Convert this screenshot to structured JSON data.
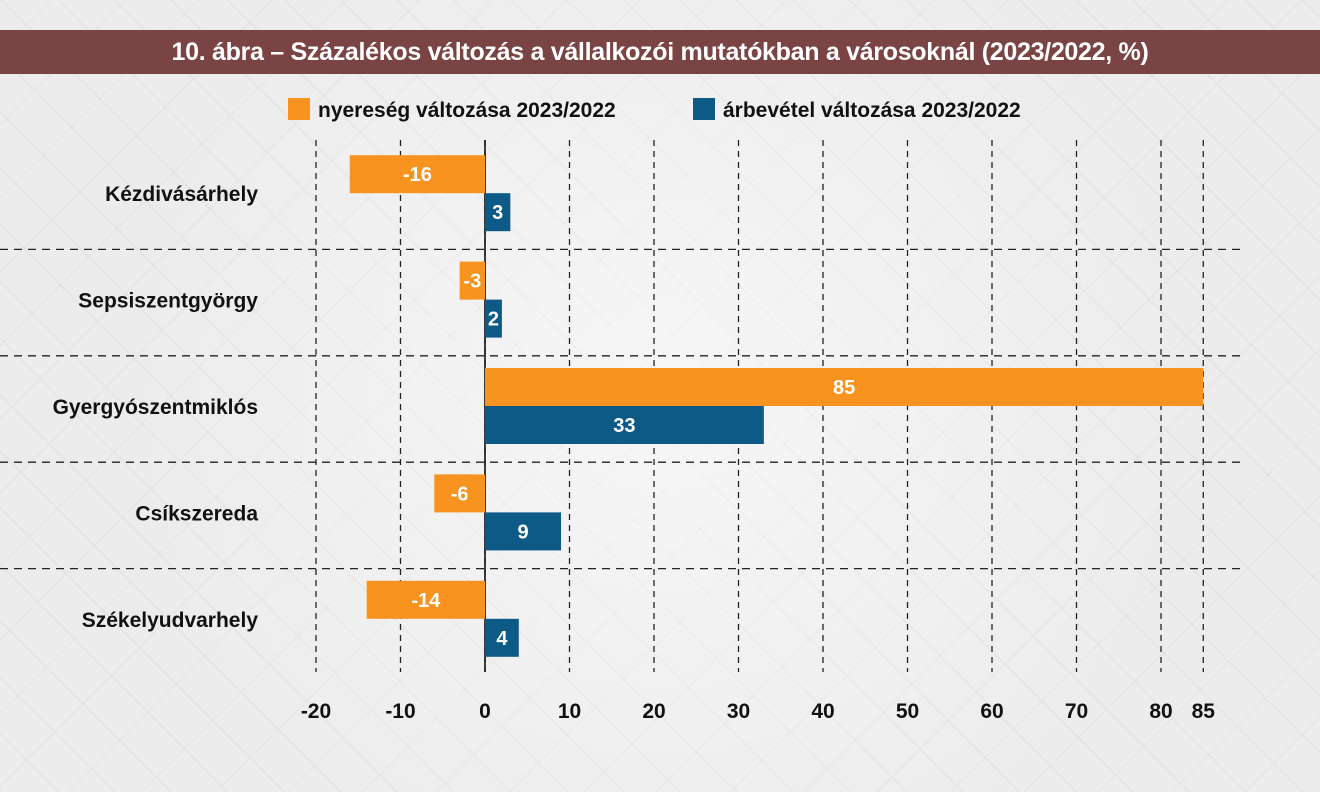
{
  "title": "10. ábra – Százalékos változás a vállalkozói mutatókban a városoknál (2023/2022, %)",
  "chart_data": {
    "type": "bar",
    "orientation": "horizontal",
    "title": "10. ábra – Százalékos változás a vállalkozói mutatókban a városoknál (2023/2022, %)",
    "categories": [
      "Kézdivásárhely",
      "Sepsiszentgyörgy",
      "Gyergyószentmiklós",
      "Csíkszereda",
      "Székelyudvarhely"
    ],
    "series": [
      {
        "name": "nyereség változása 2023/2022",
        "color": "#f7931e",
        "values": [
          -16,
          -3,
          85,
          -6,
          -14
        ]
      },
      {
        "name": "árbevétel változása 2023/2022",
        "color": "#0d5a86",
        "values": [
          3,
          2,
          33,
          9,
          4
        ]
      }
    ],
    "x_ticks": [
      -20,
      -10,
      0,
      10,
      20,
      30,
      40,
      50,
      60,
      70,
      80,
      85
    ],
    "xlim": [
      -20,
      85
    ],
    "grid": true,
    "legend_position": "top"
  }
}
